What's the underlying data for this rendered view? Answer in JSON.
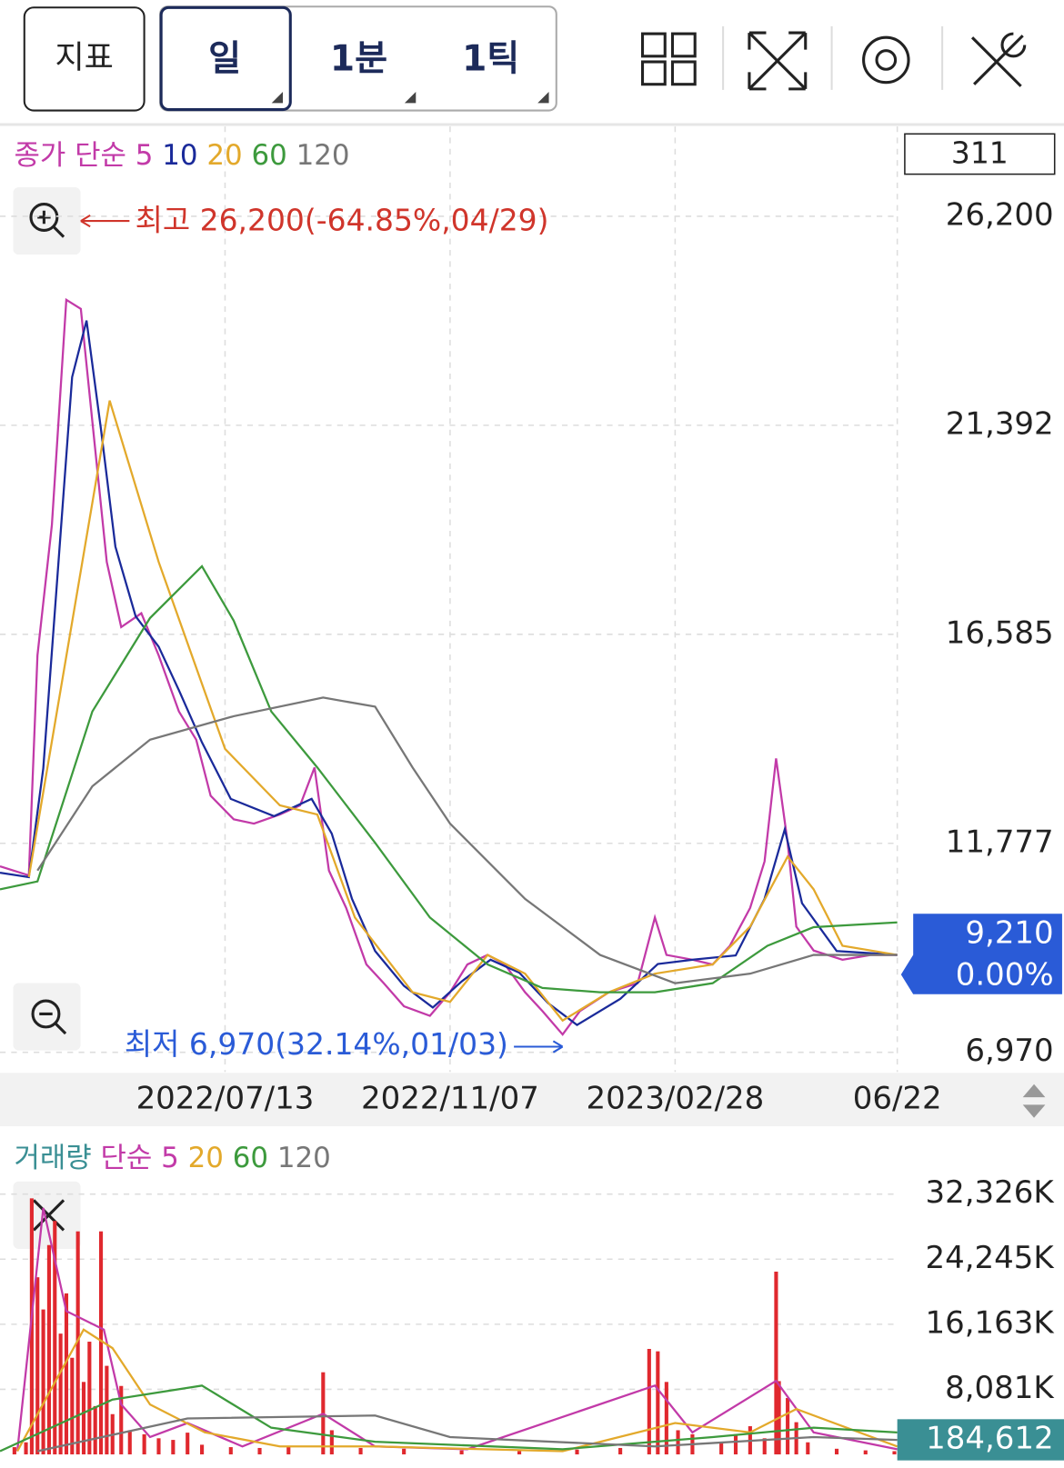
{
  "toolbar": {
    "indicator_button": "지표",
    "period_tabs": [
      "일",
      "1분",
      "1틱"
    ]
  },
  "chart_data": [
    {
      "type": "line",
      "legend_label": "종가",
      "legend_method": "단순",
      "count_label": "311",
      "xlim": [
        0,
        311
      ],
      "xticks": [
        {
          "value": 78,
          "label": "2022/07/13"
        },
        {
          "value": 156,
          "label": "2022/11/07"
        },
        {
          "value": 234,
          "label": "2023/02/28"
        },
        {
          "value": 311,
          "label": "06/22"
        }
      ],
      "ylim": [
        6518,
        28267
      ],
      "yticks": [
        {
          "value": 6970,
          "label": "6,970"
        },
        {
          "value": 11777,
          "label": "11,777"
        },
        {
          "value": 16585,
          "label": "16,585"
        },
        {
          "value": 21392,
          "label": "21,392"
        },
        {
          "value": 26200,
          "label": "26,200"
        }
      ],
      "grid": true,
      "current_price": {
        "value": 9210,
        "label": "9,210"
      },
      "change": {
        "value": 0,
        "label": "0.00%"
      },
      "high": {
        "x": 28,
        "value": 26200,
        "label": "최고 26,200(-64.85%,04/29)"
      },
      "low": {
        "x": 195,
        "value": 6970,
        "label": "최저 6,970(32.14%,01/03)"
      },
      "series": [
        {
          "name": "5",
          "color": "#c23aa8",
          "x": [
            0,
            10,
            13,
            18,
            23,
            28,
            32,
            37,
            42,
            49,
            55,
            62,
            68,
            73,
            81,
            88,
            97,
            104,
            109,
            114,
            120,
            127,
            133,
            140,
            149,
            156,
            162,
            169,
            175,
            182,
            188,
            195,
            201,
            211,
            221,
            227,
            231,
            240,
            247,
            253,
            260,
            265,
            269,
            273,
            276,
            282,
            292,
            302,
            311
          ],
          "values": [
            11250,
            11040,
            16100,
            19100,
            24280,
            24070,
            21480,
            18250,
            16750,
            17070,
            16100,
            14810,
            14160,
            12870,
            12330,
            12230,
            12440,
            12650,
            13520,
            11150,
            10290,
            8990,
            8560,
            8030,
            7810,
            8350,
            8990,
            9210,
            8990,
            8350,
            7920,
            7380,
            7920,
            8350,
            8560,
            10070,
            9210,
            9100,
            8990,
            9420,
            10290,
            11360,
            13730,
            11800,
            9860,
            9310,
            9100,
            9210,
            9210
          ]
        },
        {
          "name": "10",
          "color": "#1a2a9a",
          "x": [
            0,
            10,
            15,
            20,
            25,
            30,
            35,
            40,
            47,
            55,
            62,
            70,
            80,
            95,
            108,
            115,
            122,
            130,
            140,
            150,
            160,
            170,
            180,
            190,
            200,
            215,
            228,
            240,
            255,
            265,
            272,
            278,
            290,
            311
          ],
          "values": [
            11100,
            11000,
            13500,
            18000,
            22500,
            23800,
            21300,
            18600,
            17000,
            16300,
            15300,
            14100,
            12800,
            12400,
            12800,
            12000,
            10500,
            9300,
            8500,
            8000,
            8600,
            9100,
            8800,
            8100,
            7600,
            8200,
            9000,
            9100,
            9200,
            10500,
            12100,
            10400,
            9300,
            9210
          ]
        },
        {
          "name": "20",
          "color": "#e3a92b",
          "x": [
            10,
            38,
            55,
            78,
            97,
            110,
            123,
            143,
            156,
            169,
            182,
            195,
            211,
            227,
            247,
            260,
            273,
            282,
            292,
            311
          ],
          "values": [
            11000,
            21960,
            18250,
            13950,
            12650,
            12440,
            10070,
            8350,
            8130,
            9210,
            8780,
            7700,
            8350,
            8780,
            8990,
            9860,
            11470,
            10720,
            9420,
            9210
          ]
        },
        {
          "name": "60",
          "color": "#3d9a3d",
          "x": [
            0,
            13,
            32,
            52,
            70,
            81,
            94,
            110,
            130,
            149,
            169,
            188,
            208,
            227,
            247,
            266,
            282,
            311
          ],
          "values": [
            10720,
            10900,
            14810,
            16960,
            18150,
            16900,
            14810,
            13520,
            11790,
            10070,
            8990,
            8450,
            8350,
            8350,
            8560,
            9420,
            9850,
            9960
          ]
        },
        {
          "name": "120",
          "color": "#777777",
          "x": [
            13,
            32,
            52,
            81,
            112,
            130,
            143,
            156,
            182,
            208,
            234,
            260,
            282,
            311
          ],
          "values": [
            11150,
            13090,
            14160,
            14700,
            15130,
            14920,
            13520,
            12230,
            10500,
            9210,
            8560,
            8780,
            9210,
            9210
          ]
        }
      ]
    },
    {
      "type": "bar",
      "legend_label": "거래량",
      "legend_method": "단순",
      "xlim": [
        0,
        311
      ],
      "ylim": [
        0,
        40000
      ],
      "yticks": [
        {
          "value": 8081,
          "label": "8,081K"
        },
        {
          "value": 16163,
          "label": "16,163K"
        },
        {
          "value": 24245,
          "label": "24,245K"
        },
        {
          "value": 32326,
          "label": "32,326K"
        }
      ],
      "grid": true,
      "bar_color": "#e0282e",
      "last_volume": {
        "value": 184.612,
        "label": "184,612"
      },
      "x": [
        5,
        9,
        11,
        13,
        15,
        17,
        19,
        21,
        23,
        25,
        27,
        29,
        31,
        33,
        35,
        37,
        39,
        42,
        45,
        50,
        55,
        60,
        65,
        70,
        80,
        90,
        100,
        112,
        115,
        125,
        140,
        160,
        180,
        200,
        215,
        225,
        228,
        231,
        235,
        240,
        250,
        255,
        260,
        265,
        269,
        270,
        273,
        276,
        280,
        290,
        300,
        310
      ],
      "values": [
        900,
        1500,
        31800,
        22000,
        18000,
        26000,
        29000,
        15000,
        20000,
        12000,
        27700,
        9000,
        14000,
        6000,
        27700,
        11000,
        5000,
        8500,
        3000,
        2500,
        2000,
        1800,
        2700,
        1200,
        900,
        800,
        1000,
        10200,
        3000,
        800,
        700,
        500,
        400,
        600,
        800,
        13100,
        12800,
        9000,
        3000,
        2500,
        1500,
        2500,
        3500,
        2000,
        22700,
        9100,
        7000,
        4000,
        1500,
        700,
        500,
        400
      ],
      "series": [
        {
          "name": "5",
          "color": "#c23aa8",
          "x": [
            6,
            15,
            23,
            36,
            42,
            52,
            65,
            84,
            112,
            130,
            162,
            227,
            240,
            269,
            282,
            311
          ],
          "values": [
            400,
            30600,
            17800,
            15500,
            6200,
            2150,
            3900,
            990,
            5050,
            990,
            640,
            8550,
            2730,
            9130,
            2730,
            640
          ]
        },
        {
          "name": "20",
          "color": "#e3a92b",
          "x": [
            6,
            29,
            39,
            52,
            71,
            97,
            130,
            195,
            234,
            260,
            276,
            311
          ],
          "values": [
            400,
            15500,
            13200,
            6200,
            2730,
            990,
            990,
            400,
            3900,
            2730,
            5640,
            990
          ]
        },
        {
          "name": "60",
          "color": "#3d9a3d",
          "x": [
            0,
            39,
            70,
            94,
            130,
            195,
            247,
            282,
            311
          ],
          "values": [
            400,
            6800,
            8550,
            3310,
            1570,
            640,
            2150,
            3310,
            2730
          ]
        },
        {
          "name": "120",
          "color": "#777777",
          "x": [
            13,
            65,
            130,
            156,
            227,
            282,
            311
          ],
          "values": [
            400,
            4470,
            4820,
            2150,
            990,
            2150,
            1790
          ]
        }
      ]
    }
  ]
}
